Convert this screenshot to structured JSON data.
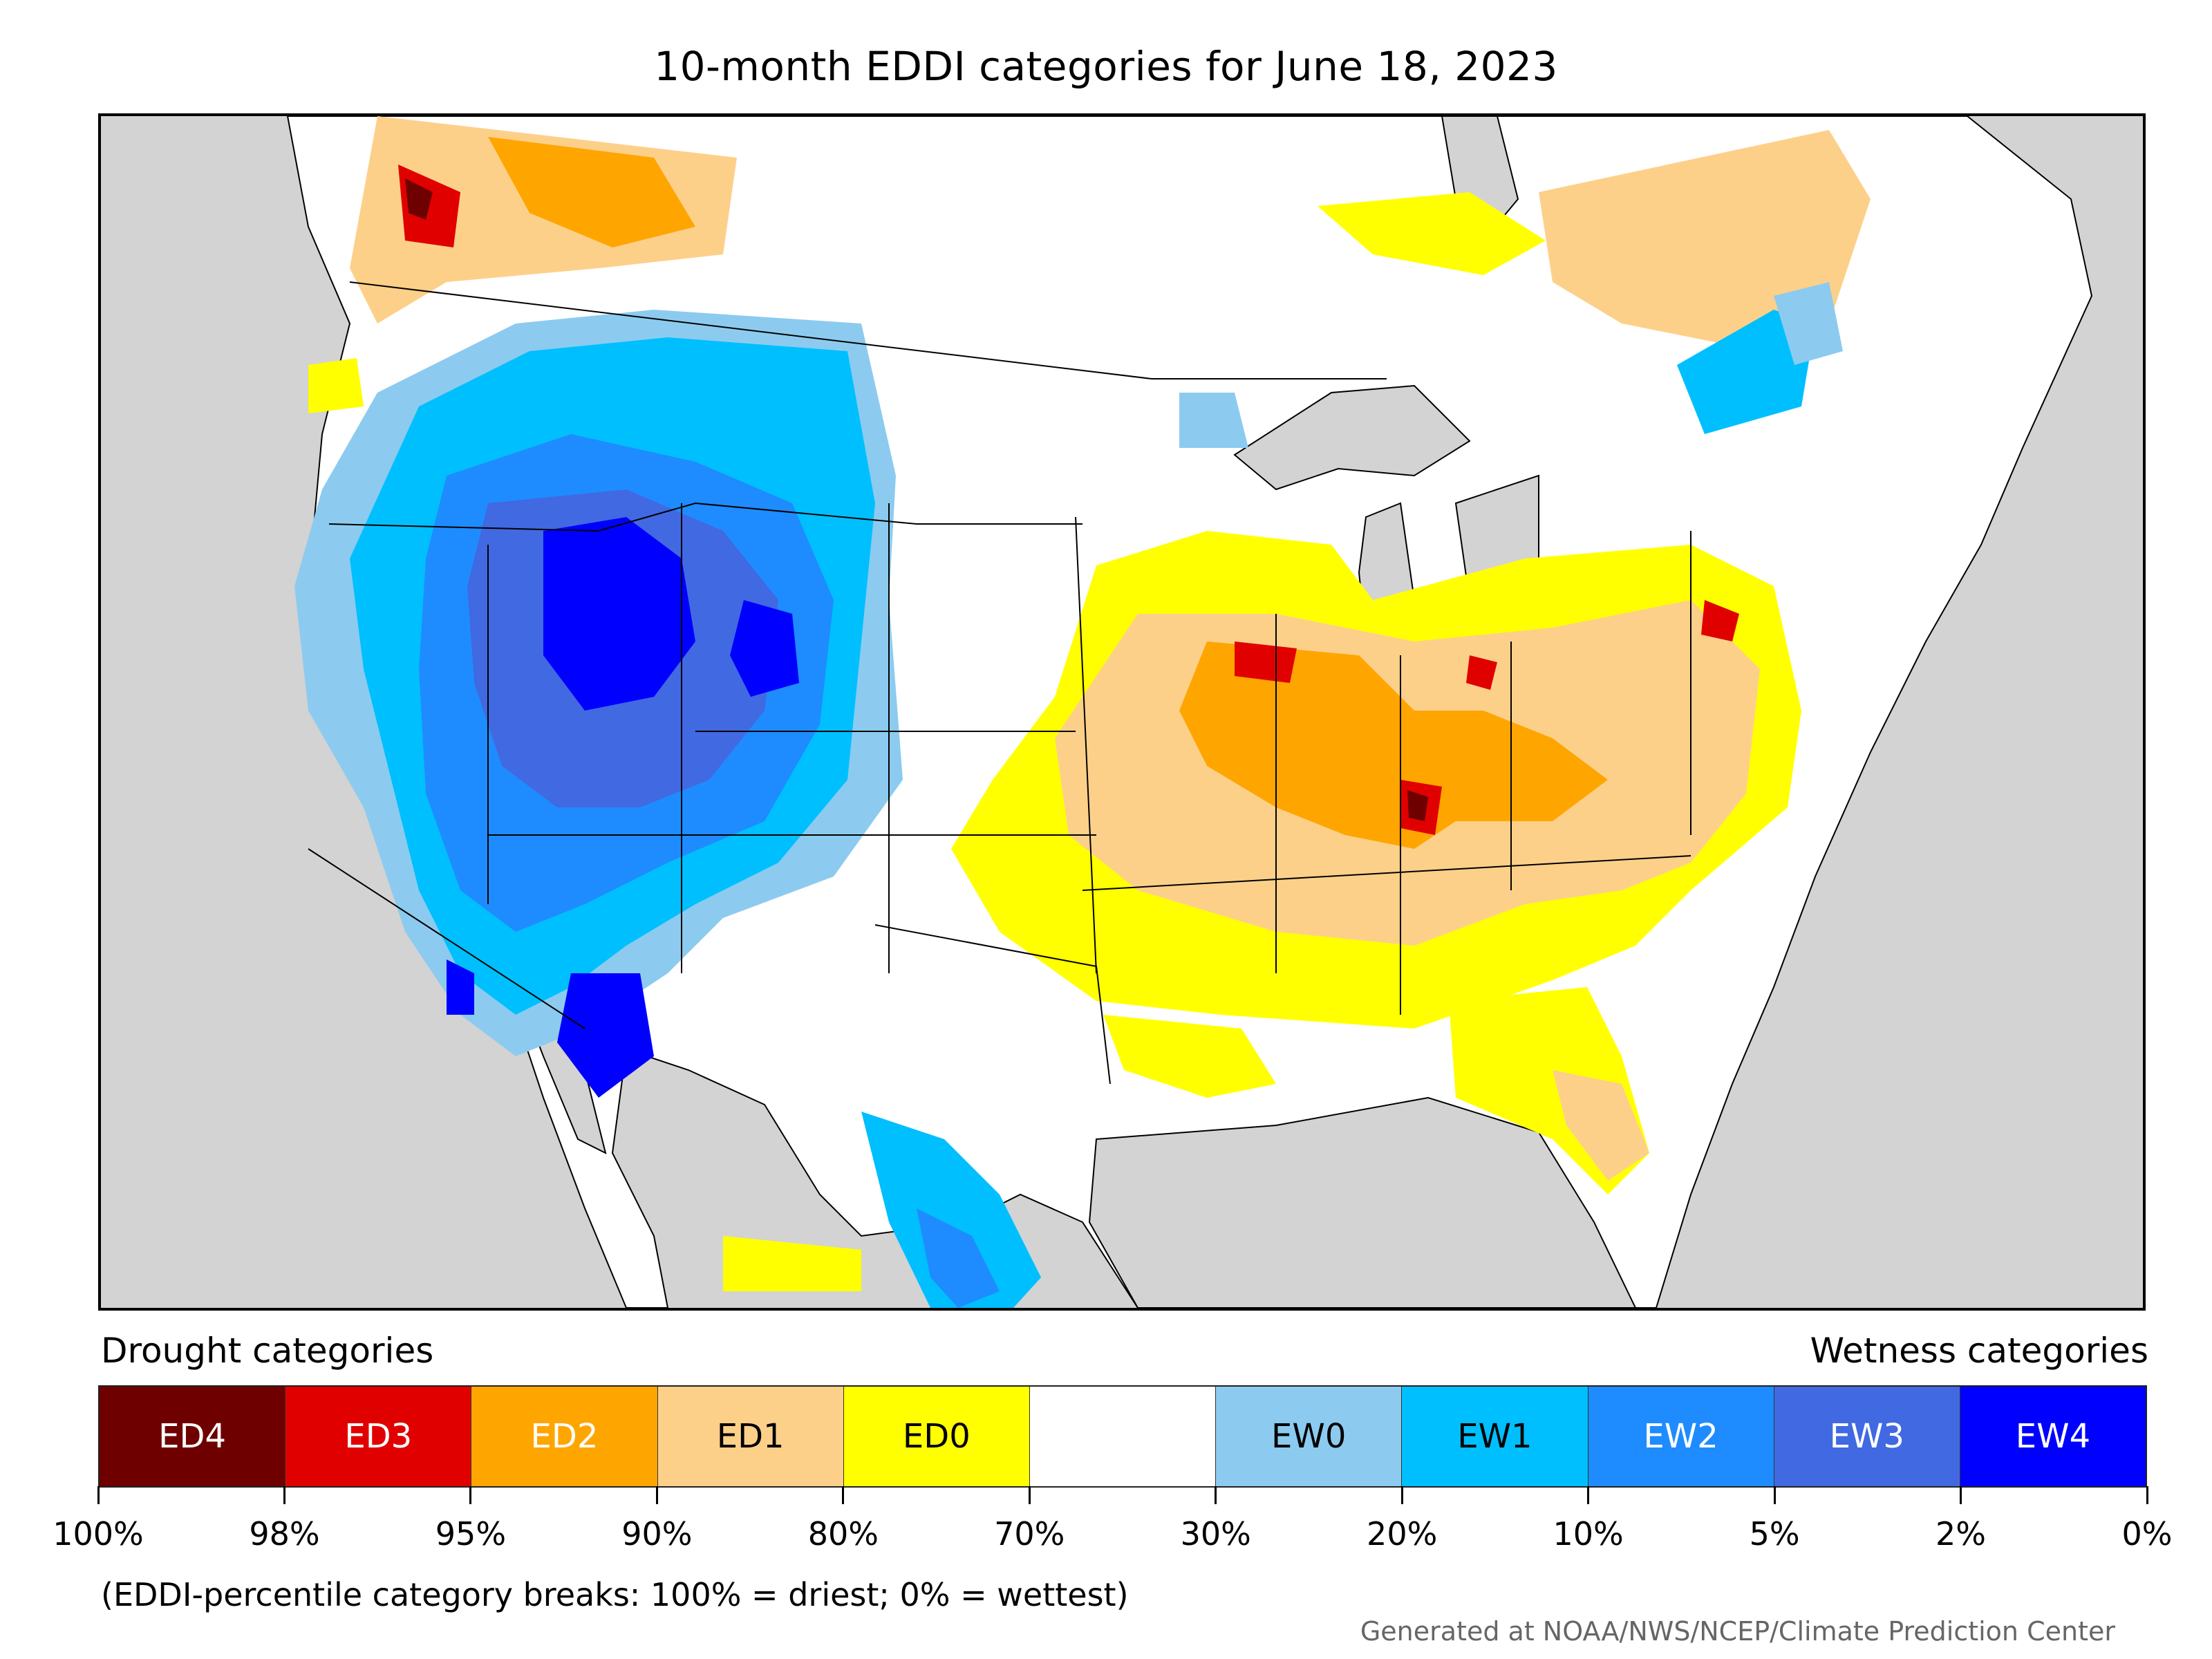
{
  "title": "10-month EDDI categories for June 18, 2023",
  "map": {
    "land_color": "#ffffff",
    "water_color": "#d3d3d3",
    "border_color": "#000000"
  },
  "legend": {
    "drought_heading": "Drought categories",
    "wetness_heading": "Wetness categories",
    "categories": [
      {
        "label": "ED4",
        "color": "#6e0000",
        "text_color": "#ffffff"
      },
      {
        "label": "ED3",
        "color": "#e00000",
        "text_color": "#ffffff"
      },
      {
        "label": "ED2",
        "color": "#ffa500",
        "text_color": "#ffffff"
      },
      {
        "label": "ED1",
        "color": "#fdd08a",
        "text_color": "#000000"
      },
      {
        "label": "ED0",
        "color": "#ffff00",
        "text_color": "#000000"
      },
      {
        "label": "",
        "color": "#ffffff",
        "text_color": "#000000"
      },
      {
        "label": "EW0",
        "color": "#8ccbef",
        "text_color": "#000000"
      },
      {
        "label": "EW1",
        "color": "#00bfff",
        "text_color": "#000000"
      },
      {
        "label": "EW2",
        "color": "#1e8cff",
        "text_color": "#ffffff"
      },
      {
        "label": "EW3",
        "color": "#4169e1",
        "text_color": "#ffffff"
      },
      {
        "label": "EW4",
        "color": "#0000ff",
        "text_color": "#ffffff"
      }
    ],
    "ticks": [
      "100%",
      "98%",
      "95%",
      "90%",
      "80%",
      "70%",
      "30%",
      "20%",
      "10%",
      "5%",
      "2%",
      "0%"
    ]
  },
  "note": "(EDDI-percentile category breaks: 100% = driest; 0% = wettest)",
  "credit": "Generated at NOAA/NWS/NCEP/Climate Prediction Center"
}
